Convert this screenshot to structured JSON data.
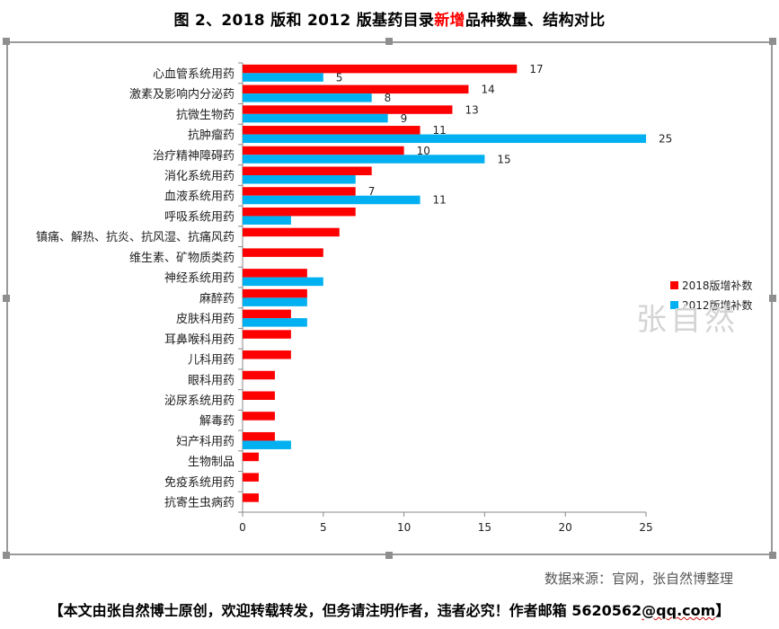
{
  "page_title": {
    "prefix": "图 2、2018 版和 2012 版基药目录",
    "highlight": "新增",
    "suffix": "品种数量、结构对比"
  },
  "watermark": "张自然",
  "source": "数据来源：官网，张自然博整理",
  "footer": {
    "prefix": "【本文由张自然博士原创，欢迎转载转发，但务请注明作者，违者必究！作者邮箱 5620562",
    "email": "@qq.com",
    "suffix": "】"
  },
  "colors": {
    "series_2018": "#ff0000",
    "series_2012": "#00b0f0",
    "axis": "#888888"
  },
  "chart_data": {
    "type": "bar",
    "orientation": "horizontal",
    "title": "图 2、2018 版和 2012 版基药目录新增品种数量、结构对比",
    "xlim": [
      0,
      25
    ],
    "xticks": [
      0,
      5,
      10,
      15,
      20,
      25
    ],
    "legend_position": "right",
    "categories": [
      "心血管系统用药",
      "激素及影响内分泌药",
      "抗微生物药",
      "抗肿瘤药",
      "治疗精神障碍药",
      "消化系统用药",
      "血液系统用药",
      "呼吸系统用药",
      "镇痛、解热、抗炎、抗风湿、抗痛风药",
      "维生素、矿物质类药",
      "神经系统用药",
      "麻醉药",
      "皮肤科用药",
      "耳鼻喉科用药",
      "儿科用药",
      "眼科用药",
      "泌尿系统用药",
      "解毒药",
      "妇产科用药",
      "生物制品",
      "免疫系统用药",
      "抗寄生虫病药"
    ],
    "series": [
      {
        "name": "2018版增补数",
        "values": [
          17,
          14,
          13,
          11,
          10,
          8,
          7,
          7,
          6,
          5,
          4,
          4,
          3,
          3,
          3,
          2,
          2,
          2,
          2,
          1,
          1,
          1
        ],
        "labels": [
          "17",
          "14",
          "13",
          "11",
          "10",
          "",
          "7",
          "",
          "",
          "",
          "",
          "",
          "",
          "",
          "",
          "",
          "",
          "",
          "",
          "",
          "",
          ""
        ]
      },
      {
        "name": "2012版增补数",
        "values": [
          5,
          8,
          9,
          25,
          15,
          7,
          11,
          3,
          0,
          0,
          5,
          4,
          4,
          0,
          0,
          0,
          0,
          0,
          3,
          0,
          0,
          0
        ],
        "labels": [
          "5",
          "8",
          "9",
          "25",
          "15",
          "",
          "11",
          "",
          "",
          "",
          "",
          "",
          "",
          "",
          "",
          "",
          "",
          "",
          "",
          "",
          "",
          ""
        ]
      }
    ]
  }
}
